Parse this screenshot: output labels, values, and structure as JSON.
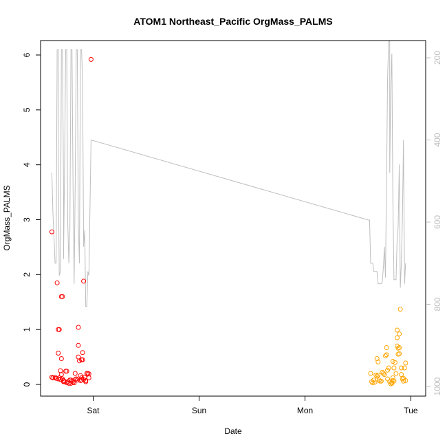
{
  "chart_data": {
    "type": "scatter",
    "title": "ATOM1 Northeast_Pacific OrgMass_PALMS",
    "xlabel": "Date",
    "ylabel": "OrgMass_PALMS",
    "x_unit": "days (0 = Sat 00:00)",
    "xlim": [
      -0.44,
      3.06
    ],
    "ylim": [
      0,
      6.1
    ],
    "x_ticks": [
      {
        "label": "Sat",
        "value": 0
      },
      {
        "label": "Sun",
        "value": 1
      },
      {
        "label": "Mon",
        "value": 2
      },
      {
        "label": "Tue",
        "value": 3
      }
    ],
    "y_ticks": [
      0,
      1,
      2,
      3,
      4,
      5,
      6
    ],
    "right_axis": {
      "ylim": [
        1000,
        200
      ],
      "ticks": [
        200,
        400,
        600,
        800,
        1000
      ],
      "color": "#bebebe"
    },
    "grid": false,
    "series": [
      {
        "color": "#ff0000",
        "points": [
          [
            -0.39,
            2.78
          ],
          [
            -0.39,
            0.13
          ],
          [
            -0.38,
            0.12
          ],
          [
            -0.36,
            0.13
          ],
          [
            -0.35,
            0.11
          ],
          [
            -0.34,
            1.85
          ],
          [
            -0.33,
            0.1
          ],
          [
            -0.33,
            0.57
          ],
          [
            -0.33,
            1.0
          ],
          [
            -0.32,
            1.0
          ],
          [
            -0.32,
            0.12
          ],
          [
            -0.31,
            0.09
          ],
          [
            -0.31,
            0.25
          ],
          [
            -0.3,
            0.47
          ],
          [
            -0.3,
            0.18
          ],
          [
            -0.3,
            1.6
          ],
          [
            -0.29,
            1.6
          ],
          [
            -0.29,
            0.1
          ],
          [
            -0.28,
            0.07
          ],
          [
            -0.28,
            0.05
          ],
          [
            -0.27,
            0.05
          ],
          [
            -0.26,
            0.24
          ],
          [
            -0.25,
            0.24
          ],
          [
            -0.25,
            0.03
          ],
          [
            -0.24,
            0.05
          ],
          [
            -0.23,
            0.02
          ],
          [
            -0.22,
            0.08
          ],
          [
            -0.21,
            0.08
          ],
          [
            -0.21,
            0.02
          ],
          [
            -0.2,
            0.06
          ],
          [
            -0.19,
            0.04
          ],
          [
            -0.18,
            0.03
          ],
          [
            -0.17,
            0.2
          ],
          [
            -0.17,
            0.09
          ],
          [
            -0.16,
            0.1
          ],
          [
            -0.15,
            0.08
          ],
          [
            -0.14,
            1.04
          ],
          [
            -0.14,
            0.71
          ],
          [
            -0.14,
            0.5
          ],
          [
            -0.13,
            0.43
          ],
          [
            -0.12,
            0.16
          ],
          [
            -0.12,
            0.07
          ],
          [
            -0.11,
            0.08
          ],
          [
            -0.11,
            0.45
          ],
          [
            -0.11,
            0.12
          ],
          [
            -0.1,
            0.45
          ],
          [
            -0.1,
            0.58
          ],
          [
            -0.09,
            1.88
          ],
          [
            -0.09,
            0.09
          ],
          [
            -0.08,
            0.13
          ],
          [
            -0.07,
            0.07
          ],
          [
            -0.07,
            0.05
          ],
          [
            -0.06,
            0.2
          ],
          [
            -0.05,
            0.2
          ],
          [
            -0.04,
            0.12
          ],
          [
            -0.04,
            0.19
          ],
          [
            -0.02,
            5.92
          ]
        ]
      },
      {
        "color": "#ffa500",
        "points": [
          [
            2.62,
            0.2
          ],
          [
            2.63,
            0.05
          ],
          [
            2.64,
            0.03
          ],
          [
            2.65,
            0.08
          ],
          [
            2.66,
            0.04
          ],
          [
            2.67,
            0.17
          ],
          [
            2.68,
            0.15
          ],
          [
            2.68,
            0.47
          ],
          [
            2.69,
            0.41
          ],
          [
            2.69,
            0.17
          ],
          [
            2.7,
            0.08
          ],
          [
            2.71,
            0.06
          ],
          [
            2.72,
            0.06
          ],
          [
            2.73,
            0.22
          ],
          [
            2.74,
            0.2
          ],
          [
            2.75,
            0.18
          ],
          [
            2.76,
            0.52
          ],
          [
            2.77,
            0.67
          ],
          [
            2.77,
            0.54
          ],
          [
            2.78,
            0.26
          ],
          [
            2.78,
            0.1
          ],
          [
            2.79,
            0.3
          ],
          [
            2.8,
            0.05
          ],
          [
            2.81,
            0.01
          ],
          [
            2.82,
            0.04
          ],
          [
            2.82,
            0.02
          ],
          [
            2.83,
            0.42
          ],
          [
            2.83,
            0.12
          ],
          [
            2.83,
            0.07
          ],
          [
            2.84,
            0.06
          ],
          [
            2.84,
            0.3
          ],
          [
            2.85,
            0.4
          ],
          [
            2.86,
            0.2
          ],
          [
            2.87,
            0.99
          ],
          [
            2.87,
            0.85
          ],
          [
            2.87,
            0.7
          ],
          [
            2.88,
            0.66
          ],
          [
            2.88,
            0.55
          ],
          [
            2.89,
            0.92
          ],
          [
            2.89,
            0.67
          ],
          [
            2.89,
            0.56
          ],
          [
            2.9,
            1.37
          ],
          [
            2.91,
            0.3
          ],
          [
            2.91,
            0.18
          ],
          [
            2.92,
            0.1
          ],
          [
            2.93,
            0.06
          ],
          [
            2.93,
            0.11
          ],
          [
            2.94,
            0.3
          ],
          [
            2.95,
            0.39
          ],
          [
            2.95,
            0.07
          ]
        ]
      }
    ],
    "altitude_line": {
      "color": "#bebebe",
      "axis": "right",
      "points": [
        [
          -0.39,
          480
        ],
        [
          -0.38,
          580
        ],
        [
          -0.36,
          700
        ],
        [
          -0.35,
          700
        ],
        [
          -0.34,
          180
        ],
        [
          -0.33,
          180
        ],
        [
          -0.33,
          460
        ],
        [
          -0.32,
          730
        ],
        [
          -0.31,
          720
        ],
        [
          -0.3,
          180
        ],
        [
          -0.29,
          180
        ],
        [
          -0.28,
          510
        ],
        [
          -0.28,
          690
        ],
        [
          -0.27,
          470
        ],
        [
          -0.26,
          180
        ],
        [
          -0.25,
          180
        ],
        [
          -0.24,
          600
        ],
        [
          -0.23,
          700
        ],
        [
          -0.22,
          620
        ],
        [
          -0.21,
          180
        ],
        [
          -0.2,
          180
        ],
        [
          -0.19,
          510
        ],
        [
          -0.18,
          750
        ],
        [
          -0.17,
          520
        ],
        [
          -0.16,
          180
        ],
        [
          -0.15,
          180
        ],
        [
          -0.14,
          610
        ],
        [
          -0.13,
          700
        ],
        [
          -0.12,
          180
        ],
        [
          -0.11,
          180
        ],
        [
          -0.1,
          260
        ],
        [
          -0.09,
          660
        ],
        [
          -0.08,
          620
        ],
        [
          -0.07,
          805
        ],
        [
          -0.06,
          805
        ],
        [
          -0.05,
          720
        ],
        [
          -0.04,
          730
        ],
        [
          -0.02,
          400
        ],
        [
          2.6,
          595
        ],
        [
          2.61,
          595
        ],
        [
          2.62,
          700
        ],
        [
          2.64,
          700
        ],
        [
          2.65,
          720
        ],
        [
          2.68,
          720
        ],
        [
          2.69,
          750
        ],
        [
          2.72,
          750
        ],
        [
          2.73,
          745
        ],
        [
          2.74,
          710
        ],
        [
          2.75,
          660
        ],
        [
          2.76,
          735
        ],
        [
          2.77,
          500
        ],
        [
          2.78,
          250
        ],
        [
          2.79,
          160
        ],
        [
          2.8,
          160
        ],
        [
          2.8,
          480
        ],
        [
          2.81,
          280
        ],
        [
          2.82,
          190
        ],
        [
          2.83,
          550
        ],
        [
          2.84,
          740
        ],
        [
          2.86,
          740
        ],
        [
          2.87,
          640
        ],
        [
          2.88,
          610
        ],
        [
          2.89,
          460
        ],
        [
          2.9,
          760
        ],
        [
          2.91,
          700
        ],
        [
          2.92,
          590
        ],
        [
          2.93,
          400
        ],
        [
          2.94,
          750
        ],
        [
          2.95,
          700
        ]
      ]
    }
  }
}
